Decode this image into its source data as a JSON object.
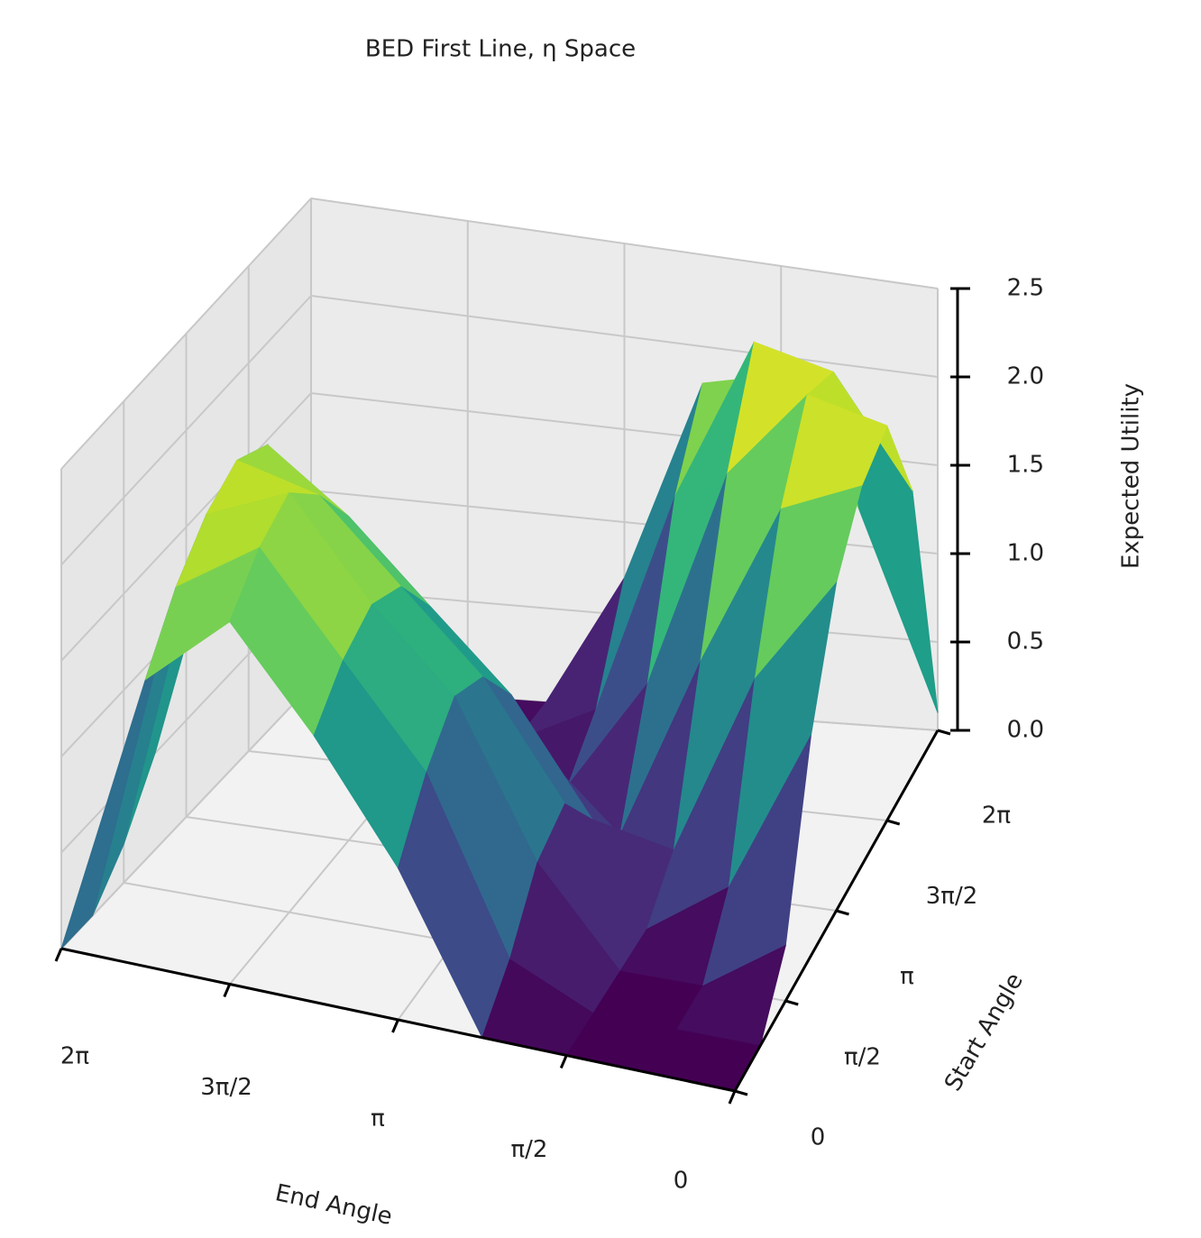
{
  "chart_data": {
    "type": "surface",
    "title": "BED First Line, η Space",
    "xlabel": "End Angle",
    "ylabel": "Start Angle",
    "zlabel": "Expected Utility",
    "colormap": "viridis",
    "x": [
      0,
      0.7854,
      1.5708,
      2.3562,
      3.1416,
      3.927,
      4.7124,
      5.4978,
      6.2832
    ],
    "y": [
      0,
      0.7854,
      1.5708,
      2.3562,
      3.1416,
      3.927,
      4.7124,
      5.4978,
      6.2832
    ],
    "z": [
      [
        0,
        0,
        0,
        0,
        0.8,
        1.4,
        1.9,
        1.5,
        0
      ],
      [
        0,
        0,
        0,
        0.2,
        1.1,
        1.6,
        2.1,
        1.8,
        0
      ],
      [
        0.3,
        0,
        0,
        0.5,
        1.3,
        1.7,
        2.2,
        2.0,
        0.2
      ],
      [
        1.2,
        0.3,
        0,
        0.6,
        1.2,
        1.6,
        2.0,
        2.1,
        0.5
      ],
      [
        1.8,
        1.2,
        0.2,
        0.3,
        0.9,
        1.3,
        1.7,
        2.0,
        0.9
      ],
      [
        2.1,
        1.9,
        1.0,
        0,
        0.4,
        0.9,
        1.3,
        1.6,
        1.2
      ],
      [
        2.2,
        2.3,
        1.8,
        0.6,
        0,
        0.4,
        0.8,
        1.1,
        1.4
      ],
      [
        1.6,
        2.2,
        2.3,
        1.4,
        0.2,
        0,
        0.3,
        0.6,
        0.9
      ],
      [
        0.1,
        1.2,
        1.9,
        1.8,
        0.7,
        0,
        0,
        0.2,
        0.1
      ]
    ],
    "xlim": [
      0,
      6.2832
    ],
    "ylim": [
      0,
      6.2832
    ],
    "zlim": [
      0,
      2.5
    ],
    "xticks": [
      {
        "value": 0,
        "label": "0"
      },
      {
        "value": 1.5708,
        "label": "π/2"
      },
      {
        "value": 3.1416,
        "label": "π"
      },
      {
        "value": 4.7124,
        "label": "3π/2"
      },
      {
        "value": 6.2832,
        "label": "2π"
      }
    ],
    "yticks": [
      {
        "value": 0,
        "label": "0"
      },
      {
        "value": 1.5708,
        "label": "π/2"
      },
      {
        "value": 3.1416,
        "label": "π"
      },
      {
        "value": 4.7124,
        "label": "3π/2"
      },
      {
        "value": 6.2832,
        "label": "2π"
      }
    ],
    "zticks": [
      {
        "value": 0,
        "label": "0.0"
      },
      0.5,
      {
        "value": 1,
        "label": "1.0"
      },
      1.5,
      {
        "value": 2,
        "label": "2.0"
      },
      2.5
    ]
  }
}
